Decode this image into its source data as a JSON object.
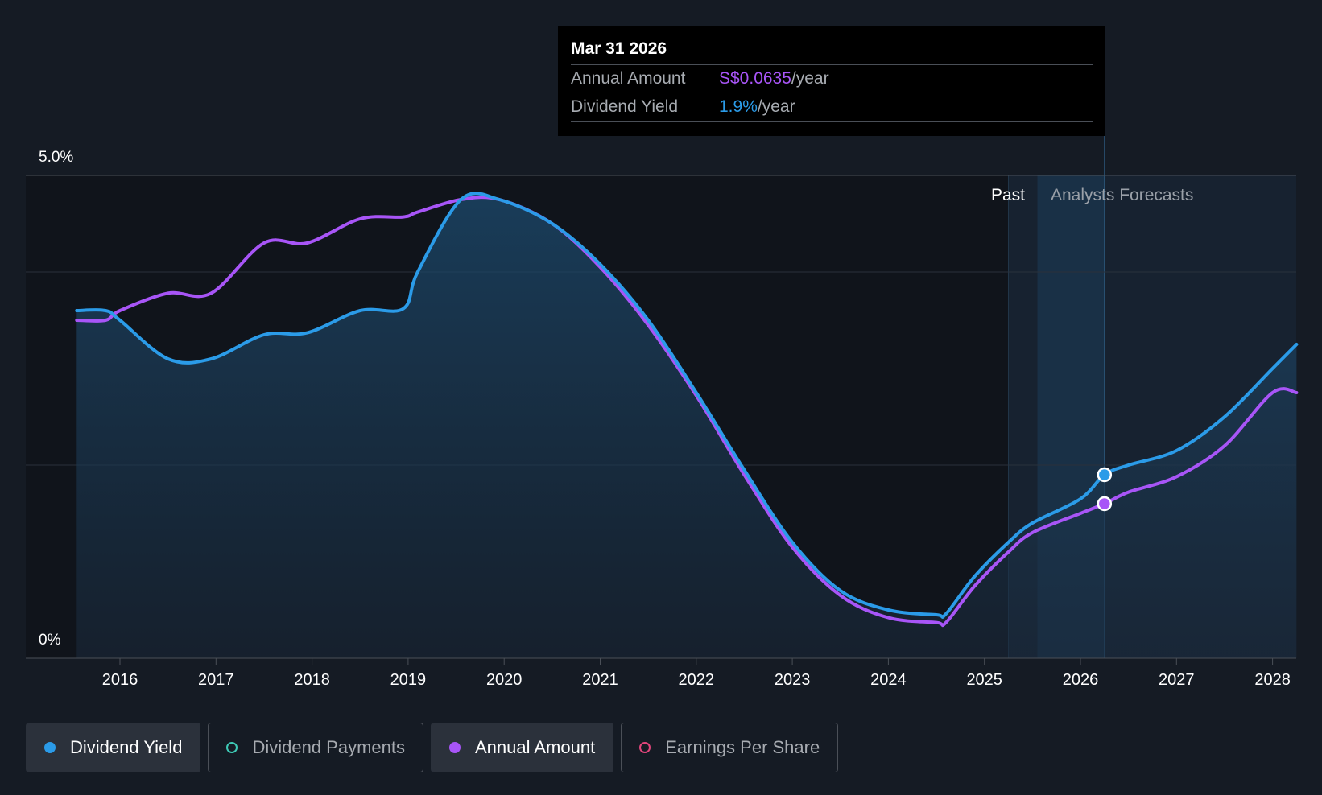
{
  "chart_data": {
    "type": "line",
    "y_axis": {
      "labels": [
        "5.0%",
        "0%"
      ],
      "ylim": [
        0,
        5.0
      ],
      "unit": "%"
    },
    "x_axis": {
      "tick_labels": [
        "2016",
        "2017",
        "2018",
        "2019",
        "2020",
        "2021",
        "2022",
        "2023",
        "2024",
        "2025",
        "2026",
        "2027",
        "2028"
      ]
    },
    "regions": {
      "past_label": "Past",
      "forecast_label": "Analysts Forecasts",
      "forecast_start": 2025.25
    },
    "series": [
      {
        "name": "Dividend Yield",
        "color": "#2b9be8",
        "area_fill": true,
        "points": [
          [
            2015.55,
            3.6
          ],
          [
            2015.85,
            3.6
          ],
          [
            2016.0,
            3.5
          ],
          [
            2016.5,
            3.1
          ],
          [
            2016.95,
            3.1
          ],
          [
            2017.5,
            3.35
          ],
          [
            2017.95,
            3.37
          ],
          [
            2018.5,
            3.6
          ],
          [
            2018.95,
            3.62
          ],
          [
            2019.1,
            4.0
          ],
          [
            2019.55,
            4.75
          ],
          [
            2019.95,
            4.75
          ],
          [
            2020.5,
            4.5
          ],
          [
            2021.0,
            4.08
          ],
          [
            2021.5,
            3.5
          ],
          [
            2022.0,
            2.75
          ],
          [
            2022.5,
            1.95
          ],
          [
            2023.0,
            1.2
          ],
          [
            2023.5,
            0.7
          ],
          [
            2024.0,
            0.5
          ],
          [
            2024.5,
            0.45
          ],
          [
            2024.6,
            0.46
          ],
          [
            2024.9,
            0.85
          ],
          [
            2025.25,
            1.2
          ],
          [
            2025.5,
            1.4
          ],
          [
            2026.0,
            1.65
          ],
          [
            2026.25,
            1.9
          ],
          [
            2026.5,
            2.0
          ],
          [
            2027.0,
            2.15
          ],
          [
            2027.5,
            2.5
          ],
          [
            2028.0,
            3.0
          ],
          [
            2028.25,
            3.25
          ]
        ]
      },
      {
        "name": "Annual Amount",
        "color": "#a855f7",
        "area_fill": false,
        "points": [
          [
            2015.55,
            3.5
          ],
          [
            2015.85,
            3.5
          ],
          [
            2016.0,
            3.6
          ],
          [
            2016.5,
            3.78
          ],
          [
            2016.95,
            3.78
          ],
          [
            2017.5,
            4.3
          ],
          [
            2017.95,
            4.3
          ],
          [
            2018.5,
            4.55
          ],
          [
            2018.95,
            4.57
          ],
          [
            2019.1,
            4.62
          ],
          [
            2019.55,
            4.75
          ],
          [
            2019.95,
            4.75
          ],
          [
            2020.5,
            4.5
          ],
          [
            2021.0,
            4.05
          ],
          [
            2021.5,
            3.45
          ],
          [
            2022.0,
            2.72
          ],
          [
            2022.5,
            1.9
          ],
          [
            2023.0,
            1.15
          ],
          [
            2023.5,
            0.65
          ],
          [
            2024.0,
            0.42
          ],
          [
            2024.5,
            0.37
          ],
          [
            2024.6,
            0.37
          ],
          [
            2024.9,
            0.75
          ],
          [
            2025.25,
            1.1
          ],
          [
            2025.5,
            1.3
          ],
          [
            2026.0,
            1.5
          ],
          [
            2026.25,
            1.6
          ],
          [
            2026.5,
            1.72
          ],
          [
            2027.0,
            1.88
          ],
          [
            2027.5,
            2.2
          ],
          [
            2028.0,
            2.75
          ],
          [
            2028.25,
            2.75
          ]
        ]
      }
    ],
    "highlight": {
      "x": 2026.25,
      "yield": 1.9,
      "amount": 1.6
    },
    "grid": true
  },
  "tooltip": {
    "date": "Mar 31 2026",
    "annual_amount_label": "Annual Amount",
    "annual_amount_value": "S$0.0635",
    "annual_amount_unit": "/year",
    "dividend_yield_label": "Dividend Yield",
    "dividend_yield_value": "1.9%",
    "dividend_yield_unit": "/year"
  },
  "legend": [
    {
      "label": "Dividend Yield",
      "color": "#2b9be8",
      "active": true,
      "marker": "filled"
    },
    {
      "label": "Dividend Payments",
      "color": "#3ec9b5",
      "active": false,
      "marker": "hollow"
    },
    {
      "label": "Annual Amount",
      "color": "#a855f7",
      "active": true,
      "marker": "filled"
    },
    {
      "label": "Earnings Per Share",
      "color": "#e0457b",
      "active": false,
      "marker": "hollow"
    }
  ]
}
